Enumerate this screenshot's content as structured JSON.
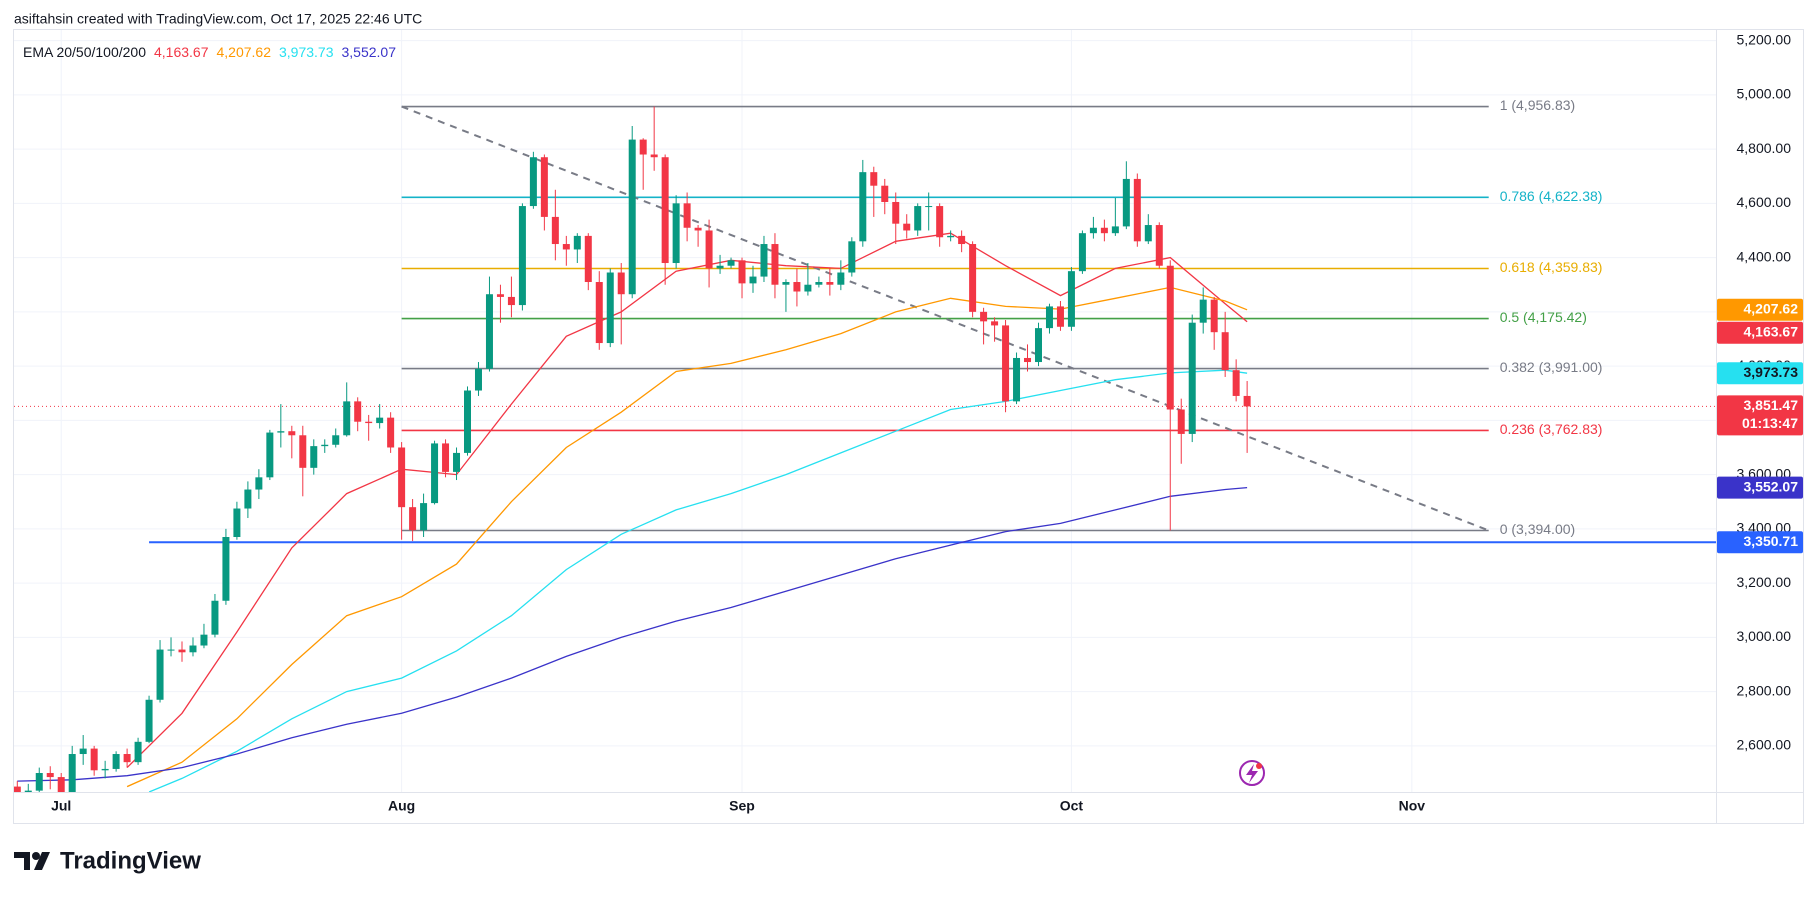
{
  "header": "asiftahsin created with TradingView.com, Oct 17, 2025 22:46 UTC",
  "logo": "TradingView",
  "chart_data": {
    "type": "candlestick",
    "title": "EMA 20/50/100/200",
    "xlim": [
      -0.3,
      154.7
    ],
    "xticks": [
      {
        "value": 4,
        "label": "Jul"
      },
      {
        "value": 35,
        "label": "Aug"
      },
      {
        "value": 66,
        "label": "Sep"
      },
      {
        "value": 96,
        "label": "Oct"
      },
      {
        "value": 127,
        "label": "Nov"
      }
    ],
    "ylim": [
      2430,
      5239
    ],
    "yticks": [
      {
        "value": 2600,
        "label": "2,600.00"
      },
      {
        "value": 2800,
        "label": "2,800.00"
      },
      {
        "value": 3000,
        "label": "3,000.00"
      },
      {
        "value": 3200,
        "label": "3,200.00"
      },
      {
        "value": 3400,
        "label": "3,400.00"
      },
      {
        "value": 3600,
        "label": "3,600.00"
      },
      {
        "value": 3800,
        "label": "3,800.00"
      },
      {
        "value": 4000,
        "label": "4,000.00"
      },
      {
        "value": 4200,
        "label": "4,200.00"
      },
      {
        "value": 4400,
        "label": "4,400.00"
      },
      {
        "value": 4600,
        "label": "4,600.00"
      },
      {
        "value": 4800,
        "label": "4,800.00"
      },
      {
        "value": 5000,
        "label": "5,000.00"
      },
      {
        "value": 5200,
        "label": "5,200.00"
      }
    ],
    "grid": true,
    "ohlc": {
      "up_color": "#089981",
      "down_color": "#f23645",
      "open": [
        2450,
        2420,
        2435,
        2500,
        2485,
        2405,
        2570,
        2590,
        2510,
        2515,
        2570,
        2540,
        2615,
        2770,
        2955,
        2955,
        2945,
        2970,
        3010,
        3135,
        3370,
        3475,
        3545,
        3590,
        3755,
        3760,
        3745,
        3625,
        3705,
        3710,
        3745,
        3870,
        3795,
        3790,
        3810,
        3700,
        3480,
        3395,
        3495,
        3715,
        3610,
        3680,
        3910,
        3990,
        4265,
        4255,
        4225,
        4590,
        4770,
        4550,
        4450,
        4430,
        4480,
        4310,
        4085,
        4345,
        4265,
        4835,
        4780,
        4770,
        4380,
        4600,
        4510,
        4500,
        4360,
        4370,
        4390,
        4305,
        4330,
        4450,
        4300,
        4310,
        4275,
        4300,
        4310,
        4300,
        4345,
        4460,
        4715,
        4665,
        4605,
        4525,
        4500,
        4590,
        4590,
        4475,
        4480,
        4450,
        4200,
        4165,
        4150,
        3870,
        4030,
        4015,
        4140,
        4220,
        4145,
        4350,
        4490,
        4510,
        4490,
        4515,
        4690,
        4460,
        4520,
        4370,
        3840,
        3750,
        4160,
        4245,
        4125,
        3985,
        3890
      ],
      "high": [
        2470,
        2460,
        2520,
        2525,
        2500,
        2600,
        2640,
        2600,
        2545,
        2580,
        2590,
        2630,
        2785,
        2990,
        3000,
        2985,
        3000,
        3050,
        3160,
        3400,
        3500,
        3575,
        3620,
        3765,
        3860,
        3780,
        3780,
        3730,
        3730,
        3770,
        3940,
        3885,
        3820,
        3860,
        3830,
        3720,
        3510,
        3530,
        3725,
        3730,
        3700,
        3925,
        4015,
        4330,
        4300,
        4330,
        4600,
        4790,
        4780,
        4650,
        4480,
        4490,
        4490,
        4350,
        4360,
        4380,
        4885,
        4840,
        4956.83,
        4780,
        4630,
        4640,
        4520,
        4540,
        4410,
        4400,
        4400,
        4370,
        4480,
        4490,
        4320,
        4360,
        4380,
        4330,
        4360,
        4390,
        4475,
        4760,
        4735,
        4690,
        4640,
        4560,
        4600,
        4640,
        4600,
        4500,
        4500,
        4460,
        4215,
        4180,
        4170,
        4050,
        4080,
        4160,
        4230,
        4240,
        4365,
        4500,
        4550,
        4540,
        4620,
        4755,
        4710,
        4560,
        4530,
        4390,
        3880,
        4190,
        4290,
        4255,
        4200,
        4025,
        3945
      ],
      "low": [
        2400,
        2400,
        2425,
        2440,
        2390,
        2395,
        2530,
        2490,
        2480,
        2505,
        2520,
        2530,
        2610,
        2760,
        2930,
        2910,
        2930,
        2960,
        3000,
        3120,
        3360,
        3440,
        3510,
        3580,
        3700,
        3660,
        3520,
        3600,
        3680,
        3700,
        3740,
        3760,
        3725,
        3770,
        3680,
        3360,
        3355,
        3370,
        3490,
        3590,
        3580,
        3670,
        3890,
        3980,
        4160,
        4180,
        4205,
        4580,
        4500,
        4390,
        4370,
        4380,
        4280,
        4060,
        4070,
        4080,
        4250,
        4650,
        4720,
        4300,
        4360,
        4460,
        4440,
        4290,
        4340,
        4360,
        4250,
        4270,
        4310,
        4250,
        4200,
        4220,
        4260,
        4290,
        4260,
        4280,
        4330,
        4440,
        4550,
        4560,
        4450,
        4470,
        4480,
        4500,
        4440,
        4460,
        4420,
        4180,
        4080,
        4090,
        3830,
        3860,
        3980,
        4000,
        4120,
        4130,
        4130,
        4340,
        4470,
        4460,
        4480,
        4505,
        4440,
        4450,
        4360,
        3394,
        3640,
        3720,
        4120,
        4060,
        3960,
        3870,
        3680
      ],
      "close": [
        2420,
        2435,
        2500,
        2485,
        2405,
        2570,
        2590,
        2510,
        2515,
        2570,
        2540,
        2615,
        2770,
        2955,
        2955,
        2945,
        2970,
        3010,
        3135,
        3370,
        3475,
        3545,
        3590,
        3755,
        3760,
        3745,
        3625,
        3705,
        3710,
        3745,
        3870,
        3795,
        3790,
        3810,
        3700,
        3480,
        3395,
        3495,
        3715,
        3610,
        3680,
        3910,
        3990,
        4265,
        4255,
        4225,
        4590,
        4770,
        4550,
        4450,
        4430,
        4480,
        4310,
        4085,
        4345,
        4265,
        4835,
        4780,
        4770,
        4380,
        4600,
        4510,
        4500,
        4360,
        4370,
        4390,
        4305,
        4330,
        4450,
        4300,
        4310,
        4275,
        4300,
        4310,
        4300,
        4345,
        4460,
        4715,
        4665,
        4605,
        4525,
        4500,
        4590,
        4590,
        4475,
        4480,
        4450,
        4200,
        4165,
        4150,
        3870,
        4030,
        4015,
        4140,
        4220,
        4145,
        4350,
        4490,
        4510,
        4490,
        4515,
        4690,
        4460,
        4520,
        4370,
        3840,
        3750,
        4160,
        4245,
        4125,
        3985,
        3890,
        3851.47
      ]
    },
    "series": [
      {
        "color": "#f23645",
        "last_label": "4,163.67",
        "x": [
          10,
          15,
          20,
          25,
          30,
          35,
          40,
          45,
          50,
          55,
          60,
          65,
          70,
          75,
          80,
          85,
          90,
          95,
          100,
          105,
          110,
          112
        ],
        "values": [
          2520,
          2720,
          3020,
          3330,
          3530,
          3620,
          3600,
          3860,
          4110,
          4200,
          4350,
          4390,
          4370,
          4360,
          4460,
          4490,
          4370,
          4260,
          4360,
          4400,
          4230,
          4163.67
        ]
      },
      {
        "color": "#ff9800",
        "last_label": "4,207.62",
        "x": [
          10,
          15,
          20,
          25,
          30,
          35,
          40,
          45,
          50,
          55,
          60,
          65,
          70,
          75,
          80,
          85,
          90,
          95,
          100,
          105,
          110,
          112
        ],
        "values": [
          2450,
          2540,
          2700,
          2900,
          3080,
          3150,
          3270,
          3500,
          3700,
          3830,
          3980,
          4010,
          4060,
          4120,
          4200,
          4250,
          4220,
          4210,
          4250,
          4290,
          4240,
          4207.62
        ]
      },
      {
        "color": "#26e0f0",
        "last_label": "3,973.73",
        "x": [
          12,
          15,
          20,
          25,
          30,
          35,
          40,
          45,
          50,
          55,
          60,
          65,
          70,
          75,
          80,
          85,
          90,
          95,
          100,
          105,
          110,
          112
        ],
        "values": [
          2430,
          2480,
          2580,
          2700,
          2800,
          2850,
          2950,
          3080,
          3250,
          3380,
          3470,
          3530,
          3600,
          3680,
          3760,
          3840,
          3870,
          3910,
          3950,
          3975,
          3985,
          3973.73
        ]
      },
      {
        "color": "#3a33c9",
        "last_label": "3,552.07",
        "x": [
          0,
          5,
          10,
          15,
          20,
          25,
          30,
          35,
          40,
          45,
          50,
          55,
          60,
          65,
          70,
          75,
          80,
          85,
          90,
          95,
          100,
          105,
          110,
          112
        ],
        "values": [
          2470,
          2475,
          2490,
          2520,
          2570,
          2630,
          2680,
          2720,
          2780,
          2850,
          2930,
          3000,
          3060,
          3110,
          3170,
          3230,
          3290,
          3340,
          3390,
          3420,
          3470,
          3520,
          3545,
          3552.07
        ]
      }
    ],
    "fib": {
      "x": [
        35,
        134
      ],
      "levels": [
        {
          "value": 4956.83,
          "label": "1 (4,956.83)",
          "color": "#787b86"
        },
        {
          "value": 4622.38,
          "label": "0.786 (4,622.38)",
          "color": "#14b3c8"
        },
        {
          "value": 4359.83,
          "label": "0.618 (4,359.83)",
          "color": "#e8ad00"
        },
        {
          "value": 4175.42,
          "label": "0.5 (4,175.42)",
          "color": "#43a047"
        },
        {
          "value": 3991.0,
          "label": "0.382 (3,991.00)",
          "color": "#787b86"
        },
        {
          "value": 3762.83,
          "label": "0.236 (3,762.83)",
          "color": "#f23645"
        },
        {
          "value": 3394.0,
          "label": "0 (3,394.00)",
          "color": "#787b86"
        }
      ]
    },
    "trendline": {
      "x": [
        35,
        134
      ],
      "values": [
        4956.83,
        3394
      ]
    },
    "hline": {
      "x": 12,
      "value": 3350.71,
      "label": "3,350.71",
      "color": "#2962ff"
    },
    "last_price": {
      "value": 3851.47,
      "label": "3,851.47",
      "countdown": "01:13:47",
      "color": "#f23645"
    }
  }
}
